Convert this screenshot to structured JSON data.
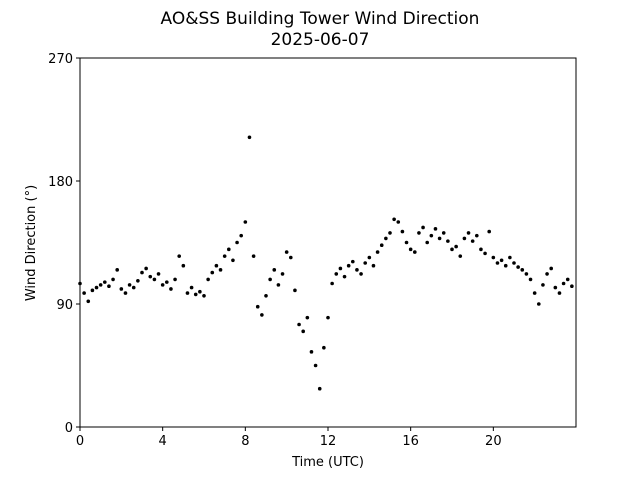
{
  "chart_data": {
    "type": "scatter",
    "title": "AO&SS Building Tower Wind Direction",
    "subtitle": "2025-06-07",
    "x_label": "Time (UTC)",
    "y_label": "Wind Direction (°)",
    "color": "#000000",
    "xlim": [
      0,
      24
    ],
    "xticks": [
      0,
      4,
      8,
      12,
      16,
      20
    ],
    "ylim": [
      0,
      270
    ],
    "yticks": [
      0,
      90,
      180,
      270
    ],
    "x": [
      0,
      0.2,
      0.4,
      0.6,
      0.8,
      1,
      1.2,
      1.4,
      1.6,
      1.8,
      2,
      2.2,
      2.4,
      2.6,
      2.8,
      3,
      3.2,
      3.4,
      3.6,
      3.8,
      4,
      4.2,
      4.4,
      4.6,
      4.8,
      5,
      5.2,
      5.4,
      5.6,
      5.8,
      6,
      6.2,
      6.4,
      6.6,
      6.8,
      7,
      7.2,
      7.4,
      7.6,
      7.8,
      8,
      8.2,
      8.4,
      8.6,
      8.8,
      9,
      9.2,
      9.4,
      9.6,
      9.8,
      10,
      10.2,
      10.4,
      10.6,
      10.8,
      11,
      11.2,
      11.4,
      11.6,
      11.8,
      12,
      12.2,
      12.4,
      12.6,
      12.8,
      13,
      13.2,
      13.4,
      13.6,
      13.8,
      14,
      14.2,
      14.4,
      14.6,
      14.8,
      15,
      15.2,
      15.4,
      15.6,
      15.8,
      16,
      16.2,
      16.4,
      16.6,
      16.8,
      17,
      17.2,
      17.4,
      17.6,
      17.8,
      18,
      18.2,
      18.4,
      18.6,
      18.8,
      19,
      19.2,
      19.4,
      19.6,
      19.8,
      20,
      20.2,
      20.4,
      20.6,
      20.8,
      21,
      21.2,
      21.4,
      21.6,
      21.8,
      22,
      22.2,
      22.4,
      22.6,
      22.8,
      23,
      23.2,
      23.4,
      23.6,
      23.8
    ],
    "values": [
      105,
      98,
      92,
      100,
      102,
      104,
      106,
      103,
      108,
      115,
      101,
      98,
      104,
      102,
      107,
      113,
      116,
      110,
      108,
      112,
      104,
      106,
      101,
      108,
      125,
      118,
      98,
      102,
      97,
      99,
      96,
      108,
      113,
      118,
      115,
      125,
      130,
      122,
      135,
      140,
      150,
      212,
      125,
      88,
      82,
      96,
      108,
      115,
      104,
      112,
      128,
      124,
      100,
      75,
      70,
      80,
      55,
      45,
      28,
      58,
      80,
      105,
      112,
      116,
      110,
      118,
      121,
      115,
      112,
      120,
      124,
      118,
      128,
      133,
      138,
      142,
      152,
      150,
      143,
      135,
      130,
      128,
      142,
      146,
      135,
      140,
      145,
      138,
      142,
      136,
      130,
      132,
      125,
      138,
      142,
      136,
      140,
      130,
      127,
      143,
      124,
      120,
      122,
      118,
      124,
      120,
      117,
      115,
      112,
      108,
      98,
      90,
      104,
      112,
      116,
      102,
      98,
      105,
      108,
      103
    ]
  }
}
